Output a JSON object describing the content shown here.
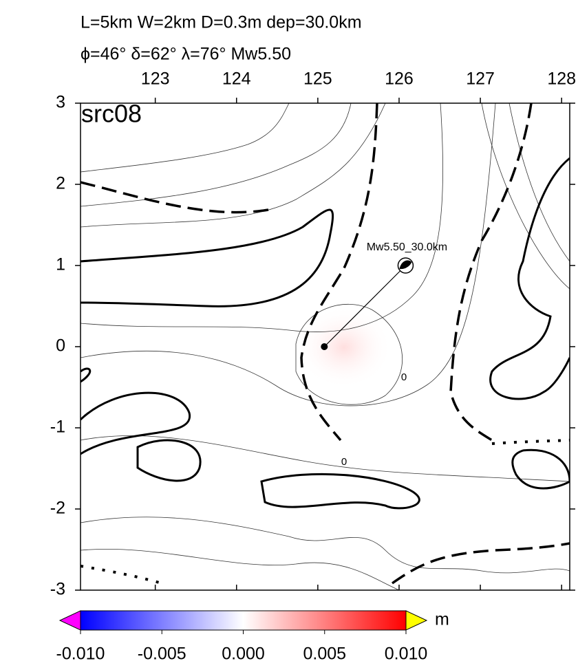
{
  "header": {
    "line1": "L=5km W=2km D=0.3m dep=30.0km",
    "line2": "ϕ=46° δ=62° λ=76° Mw5.50"
  },
  "map": {
    "label": "src08",
    "xlim": [
      122.08,
      128.1
    ],
    "ylim": [
      -3,
      3
    ],
    "xticks": [
      123,
      124,
      125,
      126,
      127,
      128
    ],
    "yticks": [
      -3,
      -2,
      -1,
      0,
      1,
      2,
      3
    ],
    "epicenter": {
      "x": 125.08,
      "y": 0
    },
    "source": {
      "x": 126.08,
      "y": 1.0,
      "label": "Mw5.50_30.0km"
    },
    "contour_labels": [
      "0",
      "0"
    ]
  },
  "colorbar": {
    "lim": [
      -0.01,
      0.01
    ],
    "ticks": [
      {
        "value": -0.01,
        "label": "-0.010"
      },
      {
        "value": -0.005,
        "label": "-0.005"
      },
      {
        "value": 0,
        "label": "0.000"
      },
      {
        "value": 0.005,
        "label": "0.005"
      },
      {
        "value": 0.01,
        "label": "0.010"
      }
    ],
    "unit": "m"
  }
}
